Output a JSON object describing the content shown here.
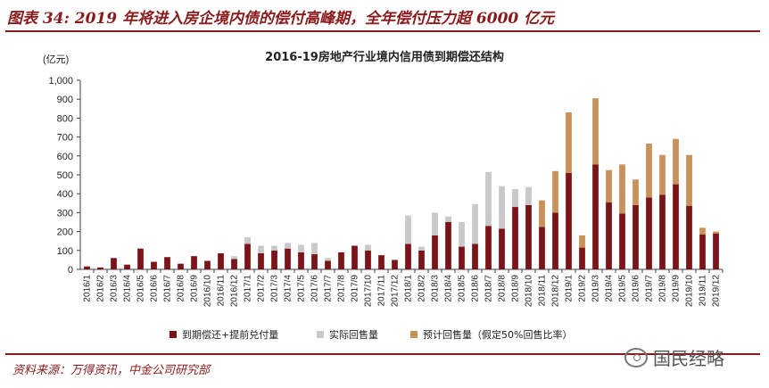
{
  "figure_title": "图表 34: 2019 年将进入房企境内债的偿付高峰期，全年偿付压力超 6000 亿元",
  "source_note": "资料来源：万得资讯，中金公司研究部",
  "watermark": "国民经略",
  "colors": {
    "due": "#7b1418",
    "actual": "#c9c9c9",
    "estimated": "#c8925a",
    "accent": "#8b1a1a"
  },
  "chart_data": {
    "type": "bar",
    "stacked": true,
    "title": "2016-19房地产行业境内信用债到期偿还结构",
    "ylabel": "(亿元)",
    "ylim": [
      0,
      1000
    ],
    "yticks": [
      0,
      100,
      200,
      300,
      400,
      500,
      600,
      700,
      800,
      900,
      1000
    ],
    "ytick_labels": [
      "0",
      "100",
      "200",
      "300",
      "400",
      "500",
      "600",
      "700",
      "800",
      "900",
      "1,000"
    ],
    "grid": false,
    "legend_position": "bottom",
    "categories": [
      "2016/1",
      "2016/2",
      "2016/3",
      "2016/4",
      "2016/5",
      "2016/6",
      "2016/7",
      "2016/8",
      "2016/9",
      "2016/10",
      "2016/11",
      "2016/12",
      "2017/1",
      "2017/2",
      "2017/3",
      "2017/4",
      "2017/5",
      "2017/6",
      "2017/7",
      "2017/8",
      "2017/9",
      "2017/10",
      "2017/11",
      "2017/12",
      "2018/1",
      "2018/2",
      "2018/3",
      "2018/4",
      "2018/5",
      "2018/6",
      "2018/7",
      "2018/8",
      "2018/9",
      "2018/10",
      "2018/11",
      "2018/12",
      "2019/1",
      "2019/2",
      "2019/3",
      "2019/4",
      "2019/5",
      "2019/6",
      "2019/7",
      "2019/8",
      "2019/9",
      "2019/10",
      "2019/11",
      "2019/12"
    ],
    "series": [
      {
        "name": "到期偿还+提前兑付量",
        "color": "#7b1418",
        "values": [
          15,
          10,
          60,
          25,
          110,
          40,
          65,
          30,
          70,
          45,
          85,
          55,
          135,
          85,
          100,
          110,
          90,
          80,
          45,
          90,
          125,
          100,
          75,
          50,
          135,
          100,
          180,
          250,
          120,
          135,
          230,
          215,
          330,
          340,
          225,
          300,
          510,
          115,
          555,
          355,
          295,
          340,
          380,
          395,
          450,
          335,
          185,
          190
        ]
      },
      {
        "name": "实际回售量",
        "color": "#c9c9c9",
        "values": [
          5,
          0,
          0,
          0,
          0,
          0,
          0,
          0,
          0,
          0,
          0,
          15,
          35,
          40,
          25,
          30,
          40,
          60,
          15,
          0,
          0,
          30,
          0,
          0,
          150,
          20,
          120,
          30,
          130,
          210,
          285,
          225,
          95,
          95,
          0,
          0,
          0,
          0,
          0,
          0,
          0,
          0,
          0,
          0,
          0,
          0,
          0,
          0
        ]
      },
      {
        "name": "预计回售量（假定50%回售比率）",
        "color": "#c8925a",
        "values": [
          0,
          0,
          0,
          0,
          0,
          0,
          0,
          0,
          0,
          0,
          0,
          0,
          0,
          0,
          0,
          0,
          0,
          0,
          0,
          0,
          0,
          0,
          0,
          0,
          0,
          0,
          0,
          0,
          0,
          0,
          0,
          0,
          0,
          0,
          140,
          220,
          320,
          65,
          350,
          170,
          260,
          135,
          285,
          210,
          240,
          270,
          35,
          10
        ]
      }
    ]
  }
}
